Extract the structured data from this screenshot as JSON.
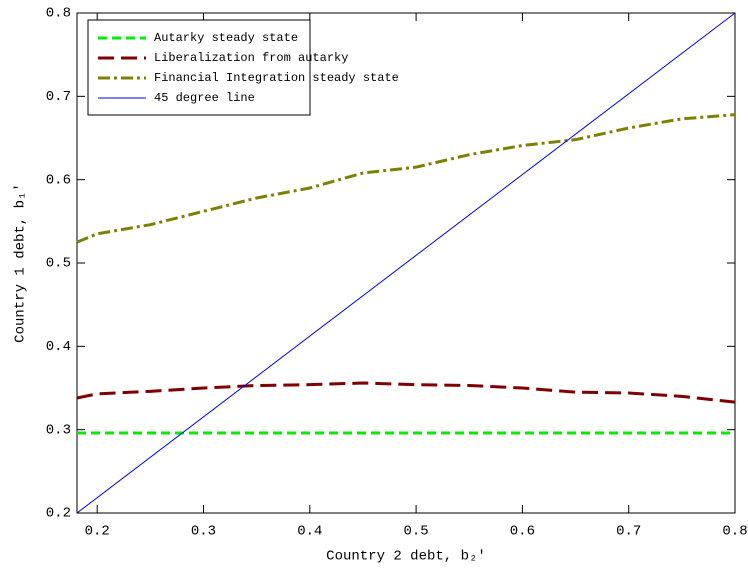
{
  "chart_data": {
    "type": "line",
    "xlabel": "Country 2 debt, b₂′",
    "ylabel": "Country 1 debt, b₁′",
    "xlim": [
      0.181,
      0.8
    ],
    "ylim": [
      0.2,
      0.8
    ],
    "xticks": [
      0.2,
      0.3,
      0.4,
      0.5,
      0.6,
      0.7,
      0.8
    ],
    "yticks": [
      0.2,
      0.3,
      0.4,
      0.5,
      0.6,
      0.7,
      0.8
    ],
    "legend": "upper left",
    "series": [
      {
        "name": "Autarky steady state",
        "color": "#00ee00",
        "dash": "9,5",
        "x": [
          0.181,
          0.8
        ],
        "values": [
          0.296,
          0.296
        ]
      },
      {
        "name": "Liberalization from autarky",
        "color": "#800000",
        "dash": "16,7",
        "x": [
          0.181,
          0.2,
          0.25,
          0.3,
          0.35,
          0.4,
          0.45,
          0.5,
          0.55,
          0.6,
          0.65,
          0.7,
          0.75,
          0.8
        ],
        "values": [
          0.338,
          0.343,
          0.346,
          0.35,
          0.353,
          0.354,
          0.356,
          0.354,
          0.353,
          0.35,
          0.345,
          0.344,
          0.34,
          0.333
        ]
      },
      {
        "name": "Financial Integration steady state",
        "color": "#808000",
        "dash": "12,4,3,4",
        "x": [
          0.181,
          0.2,
          0.25,
          0.3,
          0.35,
          0.4,
          0.45,
          0.5,
          0.55,
          0.6,
          0.65,
          0.7,
          0.75,
          0.8
        ],
        "values": [
          0.525,
          0.535,
          0.546,
          0.562,
          0.578,
          0.59,
          0.608,
          0.615,
          0.63,
          0.641,
          0.648,
          0.662,
          0.673,
          0.678
        ]
      },
      {
        "name": "45 degree line",
        "color": "#0000ff",
        "dash": "none",
        "x": [
          0.181,
          0.8
        ],
        "values": [
          0.2,
          0.8
        ]
      }
    ]
  }
}
